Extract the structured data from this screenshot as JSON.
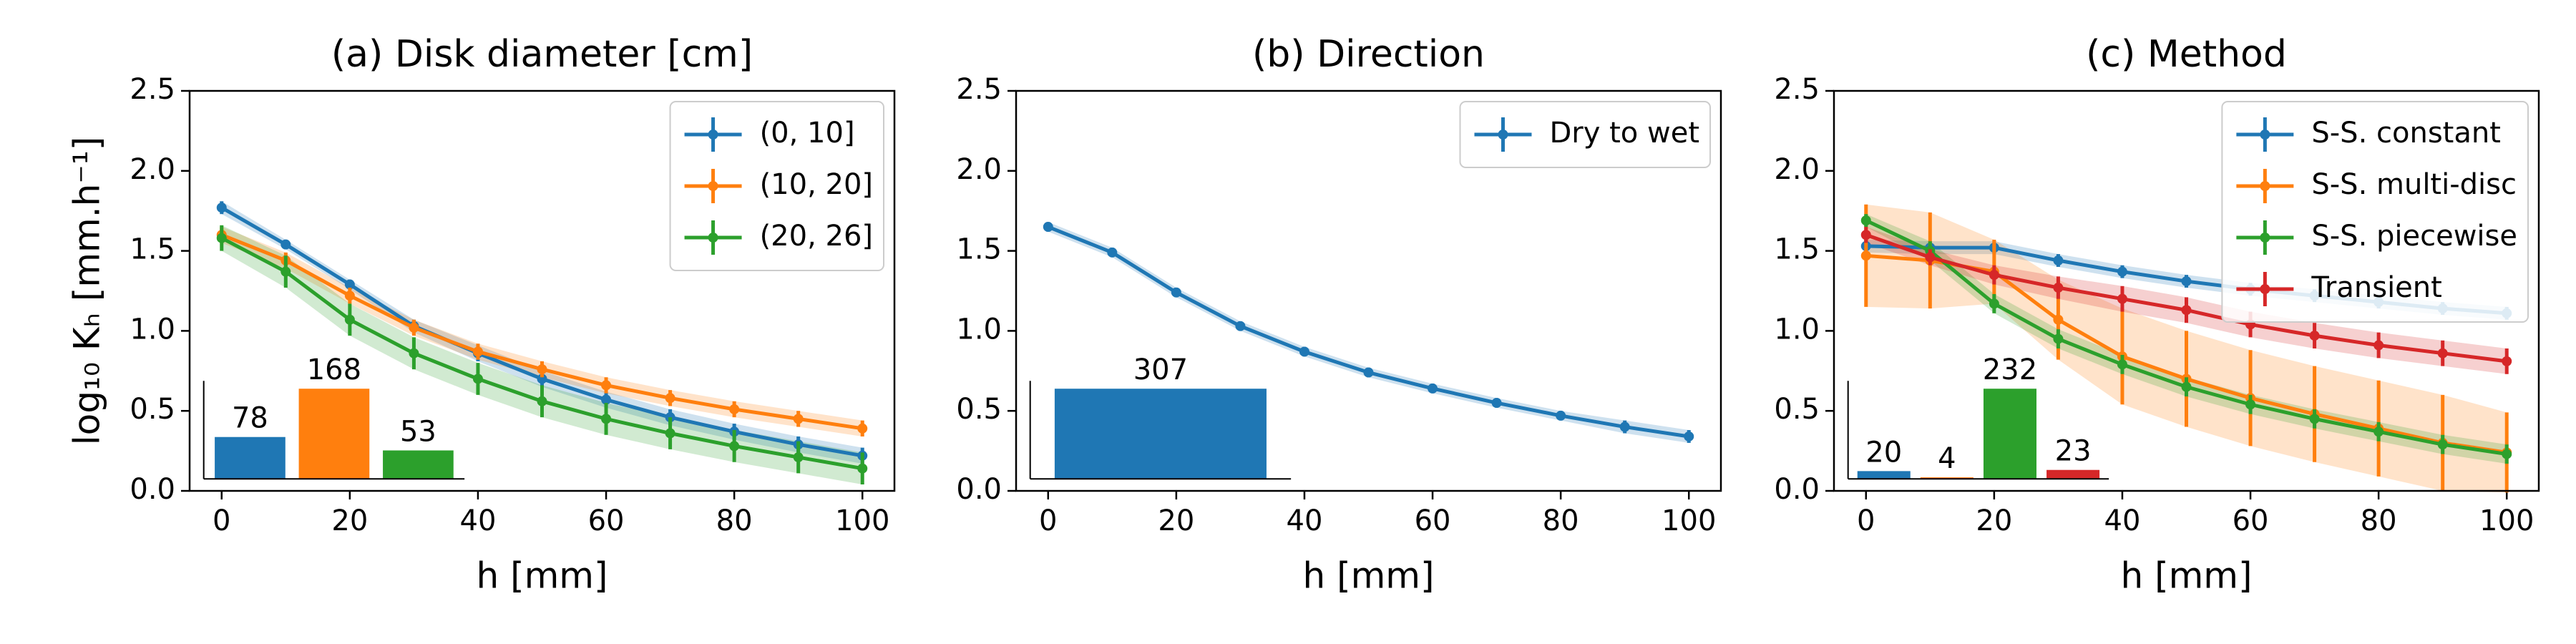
{
  "chart_data": [
    {
      "type": "line",
      "title": "(a) Disk diameter [cm]",
      "xlabel": "h [mm]",
      "ylabel": "log₁₀ Kₕ [mm.h⁻¹]",
      "x": [
        0,
        10,
        20,
        30,
        40,
        50,
        60,
        70,
        80,
        90,
        100
      ],
      "xlim": [
        -5,
        105
      ],
      "ylim": [
        0,
        2.5
      ],
      "xticks": [
        0,
        20,
        40,
        60,
        80,
        100
      ],
      "yticks": [
        {
          "value": 0,
          "label": "0.0"
        },
        0.5,
        {
          "value": 1,
          "label": "1.0"
        },
        1.5,
        {
          "value": 2,
          "label": "2.0"
        },
        2.5
      ],
      "legend": "upper right",
      "series": [
        {
          "name": "(0, 10]",
          "color": "#1f77b4",
          "values": [
            1.77,
            1.54,
            1.29,
            1.03,
            0.86,
            0.7,
            0.57,
            0.46,
            0.37,
            0.29,
            0.22
          ],
          "errors": [
            0.04,
            0.03,
            0.03,
            0.04,
            0.05,
            0.05,
            0.05,
            0.05,
            0.05,
            0.05,
            0.05
          ]
        },
        {
          "name": "(10, 20]",
          "color": "#ff7f0e",
          "values": [
            1.6,
            1.44,
            1.22,
            1.02,
            0.87,
            0.76,
            0.66,
            0.58,
            0.51,
            0.45,
            0.39
          ],
          "errors": [
            0.05,
            0.05,
            0.05,
            0.05,
            0.05,
            0.05,
            0.05,
            0.05,
            0.05,
            0.05,
            0.05
          ]
        },
        {
          "name": "(20, 26]",
          "color": "#2ca02c",
          "values": [
            1.58,
            1.37,
            1.07,
            0.86,
            0.7,
            0.56,
            0.45,
            0.36,
            0.28,
            0.21,
            0.14
          ],
          "errors": [
            0.08,
            0.1,
            0.1,
            0.1,
            0.1,
            0.1,
            0.1,
            0.1,
            0.1,
            0.1,
            0.1
          ]
        }
      ],
      "inset": {
        "type": "bar",
        "values": [
          78,
          168,
          53
        ],
        "colors": [
          "#1f77b4",
          "#ff7f0e",
          "#2ca02c"
        ]
      }
    },
    {
      "type": "line",
      "title": "(b) Direction",
      "xlabel": "h [mm]",
      "x": [
        0,
        10,
        20,
        30,
        40,
        50,
        60,
        70,
        80,
        90,
        100
      ],
      "xlim": [
        -5,
        105
      ],
      "ylim": [
        0,
        2.5
      ],
      "xticks": [
        0,
        20,
        40,
        60,
        80,
        100
      ],
      "yticks": [
        {
          "value": 0,
          "label": "0.0"
        },
        0.5,
        {
          "value": 1,
          "label": "1.0"
        },
        1.5,
        {
          "value": 2,
          "label": "2.0"
        },
        2.5
      ],
      "legend": "upper right",
      "series": [
        {
          "name": "Dry to wet",
          "color": "#1f77b4",
          "values": [
            1.65,
            1.49,
            1.24,
            1.03,
            0.87,
            0.74,
            0.64,
            0.55,
            0.47,
            0.4,
            0.34
          ],
          "errors": [
            0.03,
            0.03,
            0.03,
            0.03,
            0.03,
            0.03,
            0.03,
            0.03,
            0.03,
            0.04,
            0.04
          ]
        }
      ],
      "inset": {
        "type": "bar",
        "values": [
          307
        ],
        "colors": [
          "#1f77b4"
        ]
      }
    },
    {
      "type": "line",
      "title": "(c) Method",
      "xlabel": "h [mm]",
      "x": [
        0,
        10,
        20,
        30,
        40,
        50,
        60,
        70,
        80,
        90,
        100
      ],
      "xlim": [
        -5,
        105
      ],
      "ylim": [
        0,
        2.5
      ],
      "xticks": [
        0,
        20,
        40,
        60,
        80,
        100
      ],
      "yticks": [
        {
          "value": 0,
          "label": "0.0"
        },
        0.5,
        {
          "value": 1,
          "label": "1.0"
        },
        1.5,
        {
          "value": 2,
          "label": "2.0"
        },
        2.5
      ],
      "legend": "upper right",
      "series": [
        {
          "name": "S-S. constant",
          "color": "#1f77b4",
          "values": [
            1.53,
            1.52,
            1.52,
            1.44,
            1.37,
            1.31,
            1.26,
            1.22,
            1.18,
            1.14,
            1.11
          ],
          "errors": [
            0.04,
            0.04,
            0.04,
            0.04,
            0.04,
            0.04,
            0.04,
            0.04,
            0.04,
            0.04,
            0.04
          ]
        },
        {
          "name": "S-S. multi-disc",
          "color": "#ff7f0e",
          "values": [
            1.47,
            1.44,
            1.37,
            1.07,
            0.84,
            0.7,
            0.58,
            0.48,
            0.39,
            0.3,
            0.24
          ],
          "errors": [
            0.32,
            0.3,
            0.2,
            0.25,
            0.3,
            0.3,
            0.3,
            0.3,
            0.3,
            0.3,
            0.25
          ]
        },
        {
          "name": "S-S. piecewise",
          "color": "#2ca02c",
          "values": [
            1.69,
            1.5,
            1.17,
            0.95,
            0.79,
            0.65,
            0.54,
            0.45,
            0.37,
            0.29,
            0.23
          ],
          "errors": [
            0.04,
            0.06,
            0.06,
            0.06,
            0.06,
            0.06,
            0.06,
            0.06,
            0.06,
            0.06,
            0.06
          ]
        },
        {
          "name": "Transient",
          "color": "#d62728",
          "values": [
            1.6,
            1.46,
            1.35,
            1.27,
            1.2,
            1.13,
            1.04,
            0.97,
            0.91,
            0.86,
            0.81
          ],
          "errors": [
            0.05,
            0.05,
            0.06,
            0.07,
            0.08,
            0.08,
            0.08,
            0.08,
            0.08,
            0.08,
            0.08
          ]
        }
      ],
      "inset": {
        "type": "bar",
        "values": [
          20,
          4,
          232,
          23
        ],
        "colors": [
          "#1f77b4",
          "#ff7f0e",
          "#2ca02c",
          "#d62728"
        ]
      }
    }
  ]
}
